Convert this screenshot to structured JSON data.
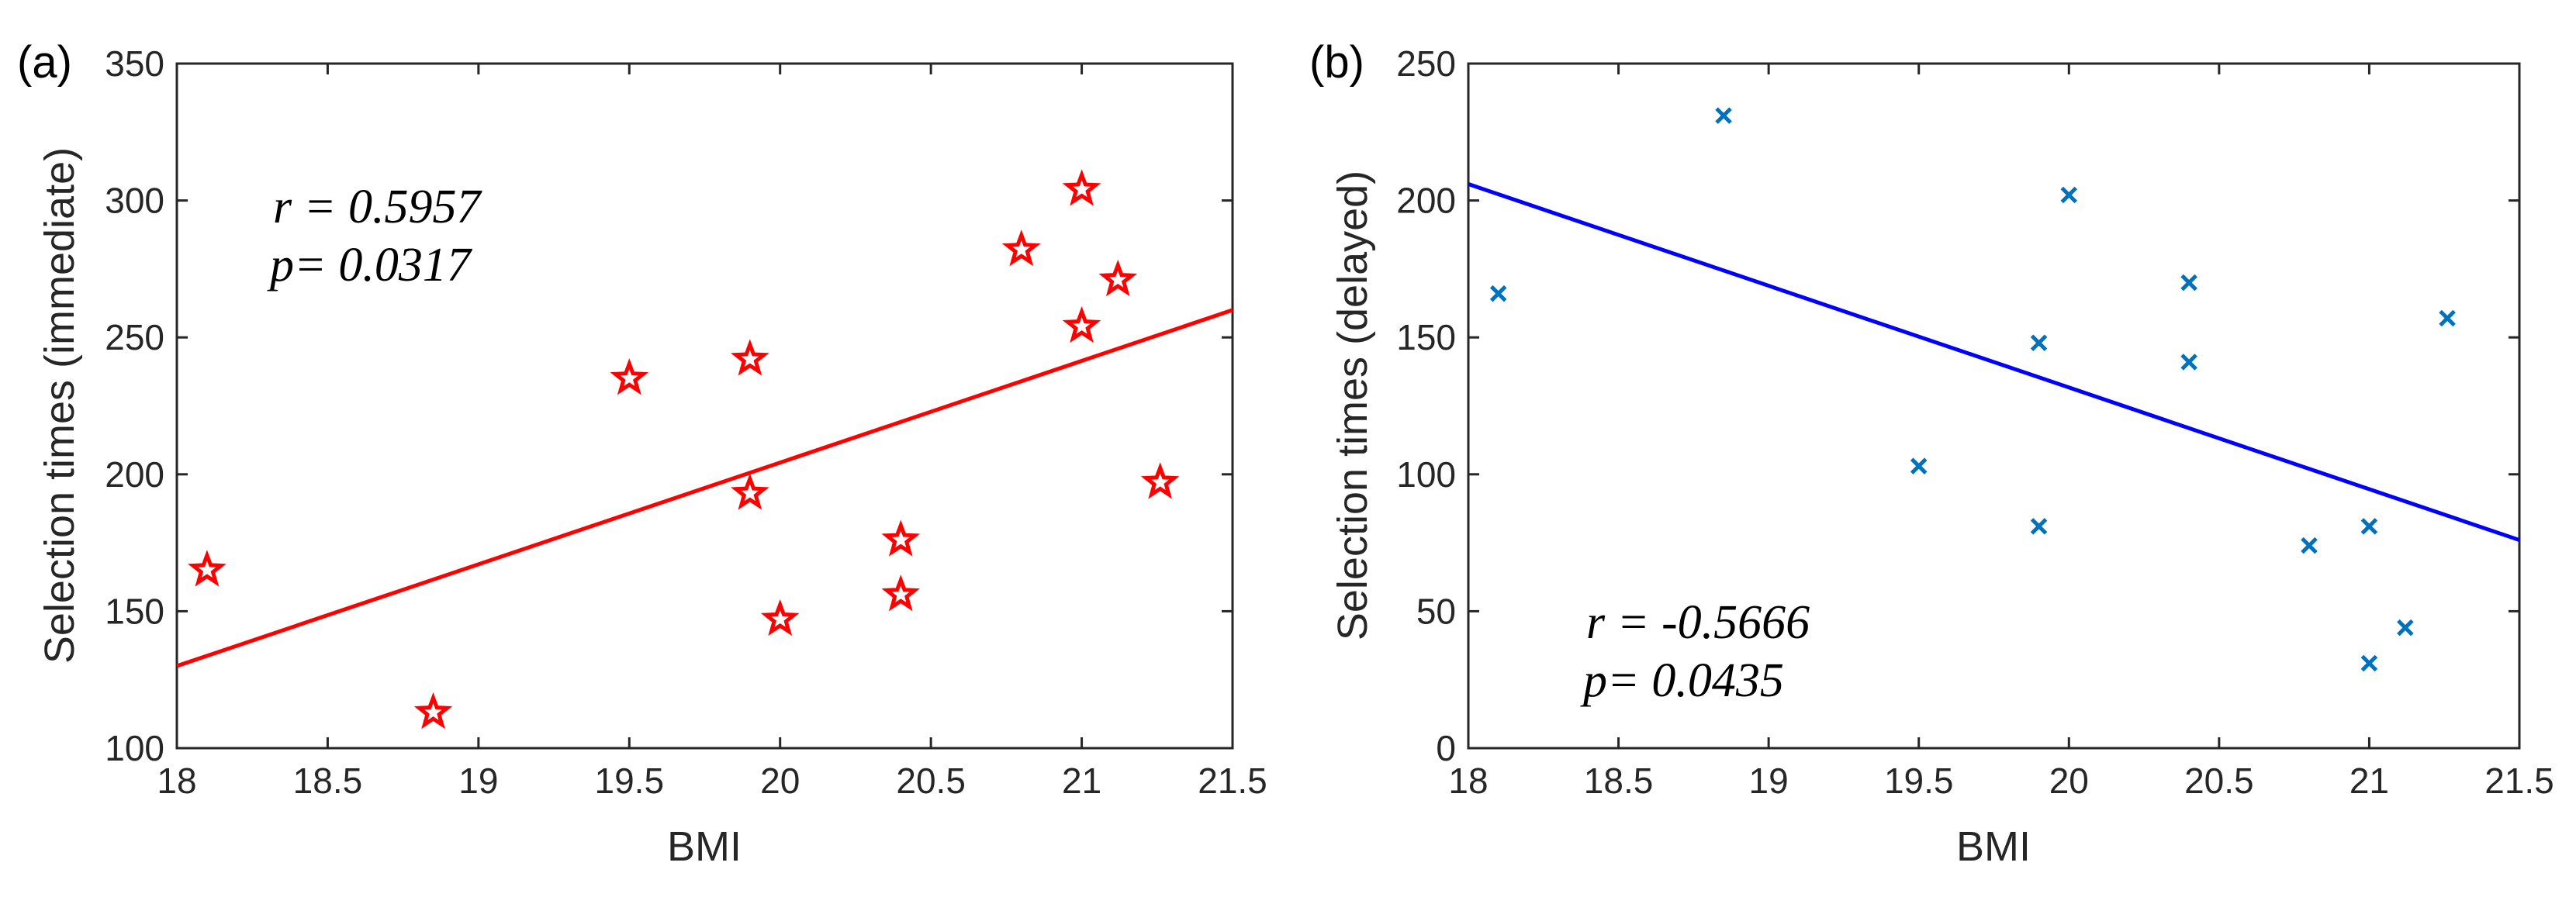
{
  "chart_data": [
    {
      "type": "scatter",
      "panel_label": "(a)",
      "xlabel": "BMI",
      "ylabel": "Selection times (immediate)",
      "xlim": [
        18,
        21.5
      ],
      "ylim": [
        100,
        350
      ],
      "xticks": [
        "18",
        "18.5",
        "19",
        "19.5",
        "20",
        "20.5",
        "21",
        "21.5"
      ],
      "yticks": [
        "100",
        "150",
        "200",
        "250",
        "300",
        "350"
      ],
      "grid": false,
      "marker": "star",
      "marker_color": "#ff0000",
      "line_color": "#ff0000",
      "points": [
        {
          "x": 18.1,
          "y": 165
        },
        {
          "x": 18.85,
          "y": 113
        },
        {
          "x": 19.5,
          "y": 235
        },
        {
          "x": 19.9,
          "y": 242
        },
        {
          "x": 19.9,
          "y": 193
        },
        {
          "x": 20.0,
          "y": 147
        },
        {
          "x": 20.4,
          "y": 176
        },
        {
          "x": 20.4,
          "y": 156
        },
        {
          "x": 20.8,
          "y": 282
        },
        {
          "x": 21.0,
          "y": 304
        },
        {
          "x": 21.0,
          "y": 254
        },
        {
          "x": 21.12,
          "y": 271
        },
        {
          "x": 21.26,
          "y": 197
        }
      ],
      "fit_line": {
        "x": [
          18,
          21.5
        ],
        "y": [
          130,
          260
        ]
      },
      "annotation": [
        "r = 0.5957",
        "p= 0.0317"
      ]
    },
    {
      "type": "scatter",
      "panel_label": "(b)",
      "xlabel": "BMI",
      "ylabel": "Selection times (delayed)",
      "xlim": [
        18,
        21.5
      ],
      "ylim": [
        0,
        250
      ],
      "xticks": [
        "18",
        "18.5",
        "19",
        "19.5",
        "20",
        "20.5",
        "21",
        "21.5"
      ],
      "yticks": [
        "0",
        "50",
        "100",
        "150",
        "200",
        "250"
      ],
      "grid": false,
      "marker": "x",
      "marker_color": "#0072bd",
      "line_color": "#0000ff",
      "points": [
        {
          "x": 18.1,
          "y": 166
        },
        {
          "x": 18.85,
          "y": 231
        },
        {
          "x": 19.5,
          "y": 103
        },
        {
          "x": 19.9,
          "y": 148
        },
        {
          "x": 19.9,
          "y": 81
        },
        {
          "x": 20.0,
          "y": 202
        },
        {
          "x": 20.4,
          "y": 170
        },
        {
          "x": 20.4,
          "y": 141
        },
        {
          "x": 20.8,
          "y": 74
        },
        {
          "x": 21.0,
          "y": 81
        },
        {
          "x": 21.0,
          "y": 31
        },
        {
          "x": 21.12,
          "y": 44
        },
        {
          "x": 21.26,
          "y": 157
        }
      ],
      "fit_line": {
        "x": [
          18,
          21.5
        ],
        "y": [
          206,
          76
        ]
      },
      "annotation": [
        "r = -0.5666",
        "p= 0.0435"
      ]
    }
  ]
}
